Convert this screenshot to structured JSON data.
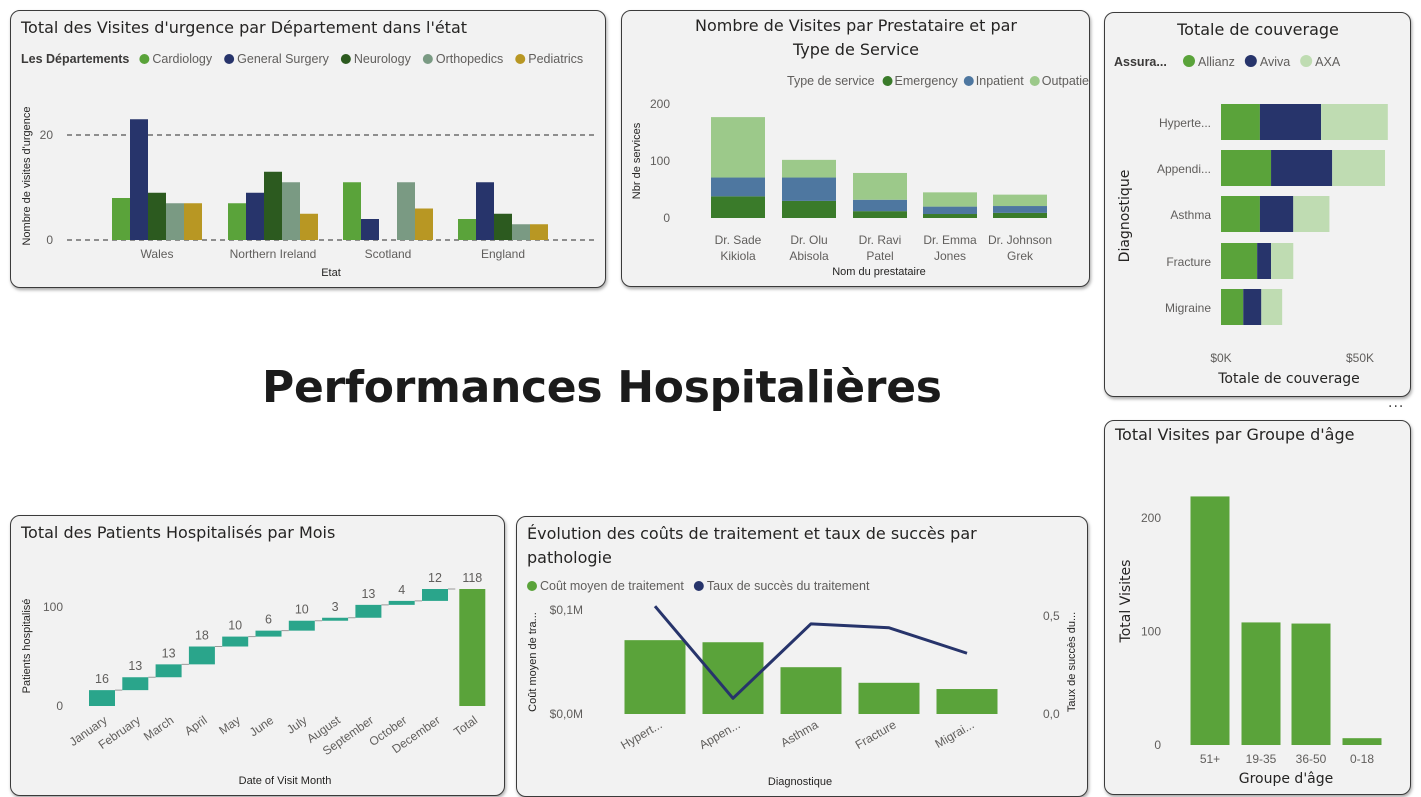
{
  "page": {
    "title": "Performances Hospitalières",
    "more_menu": "···"
  },
  "visuals": [
    {
      "id": "dept",
      "chart_data": {
        "type": "bar",
        "title": "Total des Visites d'urgence par Département dans l'état",
        "legend_title": "Les Départements",
        "legend_position": "top-left",
        "xlabel": "Etat",
        "ylabel": "Nombre de visites d'urgence",
        "categories": [
          "Wales",
          "Northern Ireland",
          "Scotland",
          "England"
        ],
        "series": [
          {
            "name": "Cardiology",
            "color": "#5aa33a",
            "values": [
              8,
              7,
              11,
              4
            ]
          },
          {
            "name": "General Surgery",
            "color": "#27346b",
            "values": [
              23,
              9,
              4,
              11
            ]
          },
          {
            "name": "Neurology",
            "color": "#2c5a1f",
            "values": [
              9,
              13,
              0,
              5
            ]
          },
          {
            "name": "Orthopedics",
            "color": "#7a9a83",
            "values": [
              7,
              11,
              11,
              3
            ]
          },
          {
            "name": "Pediatrics",
            "color": "#b89723",
            "values": [
              7,
              5,
              6,
              3
            ]
          }
        ],
        "y_ticks": [
          0,
          20
        ],
        "ylim": [
          0,
          25
        ],
        "grid": "dashed"
      }
    },
    {
      "id": "provider",
      "chart_data": {
        "type": "bar",
        "stacked": true,
        "title": "Nombre de Visites par Prestataire et par Type de Service",
        "legend_title": "Type de service",
        "legend_position": "top-right",
        "xlabel": "Nom du prestataire",
        "ylabel": "Nbr de services",
        "categories": [
          "Dr. Sade Kikiola",
          "Dr. Olu Abisola",
          "Dr. Ravi Patel",
          "Dr. Emma Jones",
          "Dr. Johnson Grek"
        ],
        "category_lines": [
          [
            "Dr. Sade",
            "Kikiola"
          ],
          [
            "Dr. Olu",
            "Abisola"
          ],
          [
            "Dr. Ravi",
            "Patel"
          ],
          [
            "Dr. Emma",
            "Jones"
          ],
          [
            "Dr. Johnson",
            "Grek"
          ]
        ],
        "series": [
          {
            "name": "Emergency",
            "color": "#3a7b2a",
            "values": [
              38,
              30,
              12,
              7,
              9
            ]
          },
          {
            "name": "Inpatient",
            "color": "#4e77a0",
            "values": [
              33,
              41,
              20,
              13,
              12
            ]
          },
          {
            "name": "Outpatient",
            "color": "#9cc98a",
            "values": [
              106,
              31,
              47,
              25,
              20
            ]
          }
        ],
        "y_ticks": [
          0,
          100,
          200
        ],
        "ylim": [
          0,
          220
        ]
      }
    },
    {
      "id": "coverage",
      "chart_data": {
        "type": "bar",
        "orientation": "horizontal",
        "stacked": true,
        "title": "Totale de couverage",
        "legend_title": "Assura...",
        "legend_position": "top-left",
        "xlabel": "Totale de couverage",
        "ylabel": "Diagnostique",
        "categories": [
          "Hyperte...",
          "Appendi...",
          "Asthma",
          "Fracture",
          "Migraine"
        ],
        "series": [
          {
            "name": "Allianz",
            "color": "#5aa33a",
            "values": [
              14000,
              18000,
              14000,
              13000,
              8000
            ]
          },
          {
            "name": "Aviva",
            "color": "#27346b",
            "values": [
              22000,
              22000,
              12000,
              5000,
              6500
            ]
          },
          {
            "name": "AXA",
            "color": "#bfdcb2",
            "values": [
              24000,
              19000,
              13000,
              8000,
              7500
            ]
          }
        ],
        "x_ticks": [
          "$0K",
          "$50K"
        ],
        "x_tick_values": [
          0,
          50000
        ],
        "xlim": [
          0,
          62000
        ]
      }
    },
    {
      "id": "age",
      "chart_data": {
        "type": "bar",
        "title": "Total Visites par Groupe d'âge",
        "xlabel": "Groupe d'âge",
        "ylabel": "Total Visites",
        "categories": [
          "51+",
          "19-35",
          "36-50",
          "0-18"
        ],
        "series": [
          {
            "color": "#5aa33a",
            "values": [
              219,
              108,
              107,
              6
            ]
          }
        ],
        "y_ticks": [
          0,
          100,
          200
        ],
        "ylim": [
          0,
          230
        ]
      }
    },
    {
      "id": "waterfall",
      "chart_data": {
        "type": "bar",
        "subtype": "waterfall",
        "title": "Total des Patients Hospitalisés par Mois",
        "xlabel": "Date of Visit Month",
        "ylabel": "Patients hospitalisé",
        "categories": [
          "January",
          "February",
          "March",
          "April",
          "May",
          "June",
          "July",
          "August",
          "September",
          "October",
          "December",
          "Total"
        ],
        "values": [
          16,
          13,
          13,
          18,
          10,
          6,
          10,
          3,
          13,
          4,
          12,
          118
        ],
        "increase_color": "#2aa58b",
        "total_color": "#5aa33a",
        "y_ticks": [
          0,
          100
        ],
        "ylim": [
          0,
          125
        ]
      }
    },
    {
      "id": "combo",
      "chart_data": {
        "type": "bar",
        "combo": "line",
        "title": "Évolution des coûts de traitement et taux de succès par pathologie",
        "title_lines": [
          "Évolution des coûts de traitement et taux de succès par",
          "pathologie"
        ],
        "xlabel": "Diagnostique",
        "ylabel": "Coût moyen de tra...",
        "y2label": "Taux de succès du...",
        "categories": [
          "Hypert...",
          "Appen...",
          "Asthma",
          "Fracture",
          "Migrai..."
        ],
        "series": [
          {
            "name": "Coût moyen de traitement",
            "kind": "bar",
            "axis": "left",
            "color": "#5aa33a",
            "values": [
              71000,
              69000,
              45000,
              30000,
              24000
            ]
          },
          {
            "name": "Taux de succès du traitement",
            "kind": "line",
            "axis": "right",
            "color": "#27346b",
            "values": [
              0.55,
              0.08,
              0.46,
              0.44,
              0.31
            ]
          }
        ],
        "y_ticks": [
          "$0,0M",
          "$0,1M"
        ],
        "y_tick_values": [
          0,
          100000
        ],
        "ylim": [
          0,
          100000
        ],
        "y2_ticks": [
          "0,0",
          "0,5"
        ],
        "y2_tick_values": [
          0,
          0.5
        ],
        "y2lim": [
          0,
          0.5
        ]
      }
    }
  ]
}
